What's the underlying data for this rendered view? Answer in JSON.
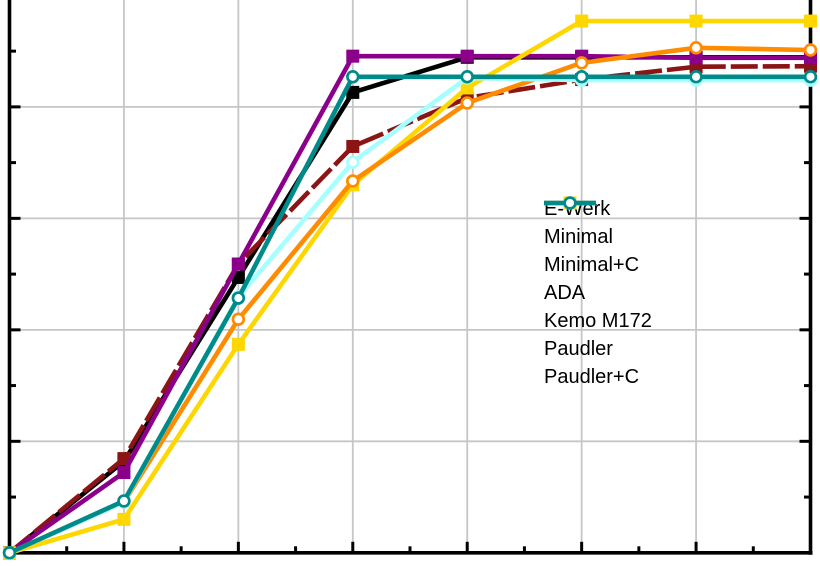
{
  "chart_data": {
    "type": "line",
    "title": "",
    "xlabel": "",
    "ylabel": "",
    "x": [
      0,
      1,
      2,
      3,
      4,
      5,
      6,
      7
    ],
    "xlim": [
      0,
      7
    ],
    "ylim": [
      0,
      100
    ],
    "y_major_step": 20,
    "y_minor_step": 10,
    "x_minor_step": 0.5,
    "grid": true,
    "axis_tick_labels_visible": false,
    "legend_position": "right-center",
    "series": [
      {
        "name": "E-Werk",
        "color": "#000000",
        "marker": "filled-square",
        "line": "solid",
        "values": [
          0,
          16.4,
          49.4,
          82.6,
          88.9,
          88.9,
          88.9,
          88.9
        ]
      },
      {
        "name": "Minimal",
        "color": "#8B1414",
        "marker": "filled-square",
        "line": "dashed",
        "values": [
          0,
          16.9,
          51.8,
          72.9,
          81.6,
          84.9,
          87.2,
          87.3
        ]
      },
      {
        "name": "Minimal+C",
        "color": "#8B008B",
        "marker": "filled-square",
        "line": "solid",
        "values": [
          0,
          14.4,
          51.8,
          89.1,
          89.1,
          89.1,
          88.8,
          88.8
        ]
      },
      {
        "name": "ADA",
        "color": "#FFD700",
        "marker": "filled-square",
        "line": "solid",
        "values": [
          0,
          6.0,
          37.4,
          66.0,
          83.4,
          95.4,
          95.4,
          95.4
        ]
      },
      {
        "name": "Kemo M172",
        "color": "#FF8C00",
        "marker": "open-circle",
        "line": "solid",
        "values": [
          0,
          9.1,
          41.9,
          66.7,
          80.7,
          87.9,
          90.6,
          90.2
        ]
      },
      {
        "name": "Paudler",
        "color": "#A5FFFF",
        "marker": "open-circle",
        "line": "solid",
        "values": [
          0,
          9.1,
          45.9,
          70.1,
          85.2,
          84.8,
          84.8,
          84.8
        ]
      },
      {
        "name": "Paudler+C",
        "color": "#008B8B",
        "marker": "open-circle",
        "line": "solid",
        "values": [
          0,
          9.3,
          45.7,
          85.4,
          85.4,
          85.4,
          85.4,
          85.4
        ]
      }
    ]
  },
  "style": {
    "grid_color": "#C6C6C6",
    "axis_color": "#000000",
    "background": "#FFFFFF",
    "marker_fill_open": "#FFFFFF"
  }
}
